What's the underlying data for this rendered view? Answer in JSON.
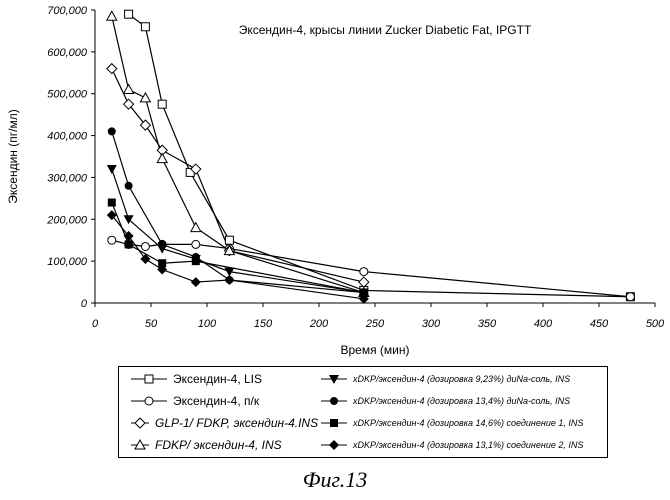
{
  "chart_data": {
    "type": "line",
    "title": "Эксендин-4, крысы линии Zucker Diabetic Fat, IPGTT",
    "xlabel": "Время (мин)",
    "ylabel": "Эксендин (пг/мл)",
    "xlim": [
      0,
      500
    ],
    "ylim": [
      0,
      700000
    ],
    "xticks": [
      0,
      50,
      100,
      150,
      200,
      250,
      300,
      350,
      400,
      450,
      500
    ],
    "yticks": [
      0,
      100000,
      200000,
      300000,
      400000,
      500000,
      600000,
      700000
    ],
    "ytick_labels": [
      "0",
      "100,000",
      "200,000",
      "300,000",
      "400,000",
      "500,000",
      "600,000",
      "700,000"
    ],
    "grid": false,
    "legend_position": "bottom",
    "series": [
      {
        "name": "Эксендин-4, LIS",
        "marker": "square-open",
        "x": [
          30,
          45,
          60,
          85,
          120,
          240,
          478
        ],
        "y": [
          690000,
          660000,
          475000,
          312000,
          150000,
          30000,
          15000
        ]
      },
      {
        "name": "Эксендин-4, п/к",
        "marker": "circle-open",
        "x": [
          15,
          30,
          45,
          60,
          90,
          120,
          240,
          478
        ],
        "y": [
          150000,
          140000,
          135000,
          140000,
          140000,
          130000,
          75000,
          15000
        ]
      },
      {
        "name": "GLP-1/ FDKP, эксендин-4.INS",
        "marker": "diamond-open",
        "x": [
          15,
          30,
          45,
          60,
          90,
          120,
          240
        ],
        "y": [
          560000,
          475000,
          425000,
          365000,
          320000,
          125000,
          50000
        ]
      },
      {
        "name": "FDKP/ эксендин-4, INS",
        "marker": "triangle-open",
        "x": [
          15,
          30,
          45,
          60,
          90,
          120,
          240
        ],
        "y": [
          685000,
          510000,
          490000,
          345000,
          180000,
          125000,
          25000
        ]
      },
      {
        "name": "xDKP/эксендин-4 (дозировка 9,23%) диNa-соль, INS",
        "marker": "triangle-down-filled",
        "x": [
          15,
          30,
          60,
          90,
          120,
          240
        ],
        "y": [
          320000,
          200000,
          130000,
          105000,
          75000,
          25000
        ]
      },
      {
        "name": "xDKP/эксендин-4 (дозировка 13,4%) диNa-соль, INS",
        "marker": "circle-filled",
        "x": [
          15,
          30,
          60,
          90,
          120,
          240
        ],
        "y": [
          410000,
          280000,
          140000,
          110000,
          55000,
          25000
        ]
      },
      {
        "name": "xDKP/эксендин-4 (дозировка 14,6%) соединение 1, INS",
        "marker": "square-filled",
        "x": [
          15,
          30,
          60,
          90,
          240
        ],
        "y": [
          240000,
          140000,
          95000,
          100000,
          25000
        ]
      },
      {
        "name": "xDKP/эксендин-4 (дозировка 13,1%) соединение 2, INS",
        "marker": "diamond-filled",
        "x": [
          15,
          30,
          45,
          60,
          90,
          120,
          240
        ],
        "y": [
          210000,
          160000,
          105000,
          80000,
          50000,
          55000,
          10000
        ]
      }
    ]
  },
  "legend": {
    "items": [
      {
        "label": "Эксендин-4, LIS"
      },
      {
        "label": "Эксендин-4, п/к"
      },
      {
        "label": "GLP-1/ FDKP, эксендин-4.INS"
      },
      {
        "label": "FDKP/ эксендин-4, INS"
      },
      {
        "label": "xDKP/эксендин-4 (дозировка 9,23%) диNa-соль, INS"
      },
      {
        "label": "xDKP/эксендин-4 (дозировка 13,4%) диNa-соль, INS"
      },
      {
        "label": "xDKP/эксендин-4 (дозировка 14,6%) соединение 1, INS"
      },
      {
        "label": "xDKP/эксендин-4 (дозировка 13,1%) соединение 2, INS"
      }
    ]
  },
  "caption": "Фиг.13"
}
